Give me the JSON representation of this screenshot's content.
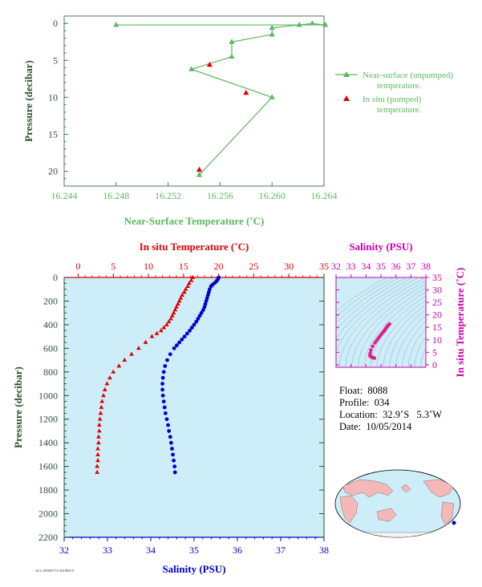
{
  "colors": {
    "green": "#5cb85c",
    "red": "#e00000",
    "blue": "#0000cc",
    "magenta": "#cc00aa",
    "axis_dark": "#2f4f2f",
    "panel_bg": "#cdeef8",
    "map_land": "#f4b8b8",
    "map_ocean": "#cdeef8"
  },
  "chart_data": [
    {
      "type": "line",
      "id": "near-surface",
      "xlabel": "Near-Surface Temperature (˚C)",
      "ylabel": "Pressure (decibar)",
      "xlim": [
        16.244,
        16.264
      ],
      "ylim": [
        22,
        -1
      ],
      "xticks": [
        "16.244",
        "16.248",
        "16.252",
        "16.256",
        "16.260",
        "16.264"
      ],
      "yticks": [
        "0",
        "5",
        "10",
        "15",
        "20"
      ],
      "series": [
        {
          "name": "Near-surface (unpumped) temperature.",
          "marker": "triangle",
          "points": [
            {
              "x": 16.248,
              "y": 0.2
            },
            {
              "x": 16.2641,
              "y": 0.2
            },
            {
              "x": 16.2631,
              "y": 0.0
            },
            {
              "x": 16.2621,
              "y": 0.2
            },
            {
              "x": 16.26,
              "y": 0.6
            },
            {
              "x": 16.26,
              "y": 1.5
            },
            {
              "x": 16.2569,
              "y": 2.5
            },
            {
              "x": 16.2569,
              "y": 4.5
            },
            {
              "x": 16.2538,
              "y": 6.2
            },
            {
              "x": 16.26,
              "y": 10.0
            },
            {
              "x": 16.2544,
              "y": 20.5
            }
          ]
        },
        {
          "name": "In situ (pumped) temperature.",
          "marker": "triangle",
          "points": [
            {
              "x": 16.2552,
              "y": 5.6
            },
            {
              "x": 16.258,
              "y": 9.4
            },
            {
              "x": 16.2544,
              "y": 19.8
            }
          ]
        }
      ],
      "legend": [
        {
          "line1": "Near-surface (unpumped)",
          "line2": "temperature."
        },
        {
          "line1": "In situ (pumped)",
          "line2": "temperature."
        }
      ]
    },
    {
      "type": "scatter",
      "id": "profile",
      "ylabel": "Pressure (decibar)",
      "ylim": [
        2200,
        0
      ],
      "yticks": [
        "0",
        "200",
        "400",
        "600",
        "800",
        "1000",
        "1200",
        "1400",
        "1600",
        "1800",
        "2000",
        "2200"
      ],
      "top_axis": {
        "label": "In situ Temperature (˚C)",
        "xlim": [
          -2,
          35
        ],
        "ticks": [
          "0",
          "5",
          "10",
          "15",
          "20",
          "25",
          "30",
          "35"
        ]
      },
      "bottom_axis": {
        "label": "Salinity (PSU)",
        "xlim": [
          32,
          38
        ],
        "ticks": [
          "32",
          "33",
          "34",
          "35",
          "36",
          "37",
          "38"
        ]
      },
      "temperature": [
        {
          "p": 0,
          "t": 16.3
        },
        {
          "p": 25,
          "t": 16.1
        },
        {
          "p": 50,
          "t": 15.8
        },
        {
          "p": 75,
          "t": 15.6
        },
        {
          "p": 100,
          "t": 15.3
        },
        {
          "p": 125,
          "t": 15.1
        },
        {
          "p": 150,
          "t": 14.8
        },
        {
          "p": 175,
          "t": 14.6
        },
        {
          "p": 200,
          "t": 14.4
        },
        {
          "p": 225,
          "t": 14.2
        },
        {
          "p": 250,
          "t": 14.0
        },
        {
          "p": 275,
          "t": 13.8
        },
        {
          "p": 300,
          "t": 13.6
        },
        {
          "p": 325,
          "t": 13.4
        },
        {
          "p": 350,
          "t": 13.2
        },
        {
          "p": 375,
          "t": 12.9
        },
        {
          "p": 400,
          "t": 12.6
        },
        {
          "p": 425,
          "t": 12.2
        },
        {
          "p": 450,
          "t": 11.8
        },
        {
          "p": 475,
          "t": 11.2
        },
        {
          "p": 500,
          "t": 10.5
        },
        {
          "p": 550,
          "t": 9.6
        },
        {
          "p": 600,
          "t": 8.6
        },
        {
          "p": 650,
          "t": 7.6
        },
        {
          "p": 700,
          "t": 6.6
        },
        {
          "p": 750,
          "t": 5.8
        },
        {
          "p": 800,
          "t": 5.0
        },
        {
          "p": 850,
          "t": 4.5
        },
        {
          "p": 900,
          "t": 4.1
        },
        {
          "p": 950,
          "t": 3.8
        },
        {
          "p": 1000,
          "t": 3.6
        },
        {
          "p": 1050,
          "t": 3.4
        },
        {
          "p": 1100,
          "t": 3.3
        },
        {
          "p": 1150,
          "t": 3.2
        },
        {
          "p": 1200,
          "t": 3.1
        },
        {
          "p": 1250,
          "t": 3.0
        },
        {
          "p": 1300,
          "t": 3.0
        },
        {
          "p": 1350,
          "t": 2.9
        },
        {
          "p": 1400,
          "t": 2.9
        },
        {
          "p": 1450,
          "t": 2.8
        },
        {
          "p": 1500,
          "t": 2.8
        },
        {
          "p": 1550,
          "t": 2.8
        },
        {
          "p": 1600,
          "t": 2.7
        },
        {
          "p": 1650,
          "t": 2.7
        }
      ],
      "salinity": [
        {
          "p": 0,
          "s": 35.57
        },
        {
          "p": 15,
          "s": 35.55
        },
        {
          "p": 30,
          "s": 35.52
        },
        {
          "p": 45,
          "s": 35.48
        },
        {
          "p": 60,
          "s": 35.43
        },
        {
          "p": 75,
          "s": 35.39
        },
        {
          "p": 100,
          "s": 35.36
        },
        {
          "p": 125,
          "s": 35.34
        },
        {
          "p": 150,
          "s": 35.32
        },
        {
          "p": 175,
          "s": 35.3
        },
        {
          "p": 200,
          "s": 35.28
        },
        {
          "p": 225,
          "s": 35.26
        },
        {
          "p": 250,
          "s": 35.24
        },
        {
          "p": 275,
          "s": 35.21
        },
        {
          "p": 300,
          "s": 35.17
        },
        {
          "p": 325,
          "s": 35.13
        },
        {
          "p": 350,
          "s": 35.09
        },
        {
          "p": 375,
          "s": 35.05
        },
        {
          "p": 400,
          "s": 35.0
        },
        {
          "p": 425,
          "s": 34.95
        },
        {
          "p": 450,
          "s": 34.9
        },
        {
          "p": 475,
          "s": 34.84
        },
        {
          "p": 500,
          "s": 34.78
        },
        {
          "p": 525,
          "s": 34.72
        },
        {
          "p": 550,
          "s": 34.66
        },
        {
          "p": 575,
          "s": 34.6
        },
        {
          "p": 600,
          "s": 34.54
        },
        {
          "p": 650,
          "s": 34.45
        },
        {
          "p": 700,
          "s": 34.38
        },
        {
          "p": 750,
          "s": 34.33
        },
        {
          "p": 800,
          "s": 34.3
        },
        {
          "p": 850,
          "s": 34.28
        },
        {
          "p": 900,
          "s": 34.27
        },
        {
          "p": 950,
          "s": 34.27
        },
        {
          "p": 1000,
          "s": 34.28
        },
        {
          "p": 1050,
          "s": 34.3
        },
        {
          "p": 1100,
          "s": 34.32
        },
        {
          "p": 1150,
          "s": 34.34
        },
        {
          "p": 1200,
          "s": 34.37
        },
        {
          "p": 1250,
          "s": 34.4
        },
        {
          "p": 1300,
          "s": 34.42
        },
        {
          "p": 1350,
          "s": 34.45
        },
        {
          "p": 1400,
          "s": 34.47
        },
        {
          "p": 1450,
          "s": 34.49
        },
        {
          "p": 1500,
          "s": 34.51
        },
        {
          "p": 1550,
          "s": 34.53
        },
        {
          "p": 1600,
          "s": 34.55
        },
        {
          "p": 1650,
          "s": 34.56
        }
      ]
    },
    {
      "type": "scatter",
      "id": "ts-diagram",
      "top_label": "Salinity (PSU)",
      "right_label": "In situ Temperature (˚C)",
      "xlim": [
        32,
        38
      ],
      "ylim": [
        -1,
        35
      ],
      "xticks": [
        "32",
        "33",
        "34",
        "35",
        "36",
        "37",
        "38"
      ],
      "yticks": [
        "0",
        "5",
        "10",
        "15",
        "20",
        "25",
        "30",
        "35"
      ],
      "points": [
        {
          "s": 35.57,
          "t": 16.3
        },
        {
          "s": 35.5,
          "t": 15.9
        },
        {
          "s": 35.42,
          "t": 15.4
        },
        {
          "s": 35.36,
          "t": 14.9
        },
        {
          "s": 35.31,
          "t": 14.4
        },
        {
          "s": 35.27,
          "t": 14.0
        },
        {
          "s": 35.22,
          "t": 13.6
        },
        {
          "s": 35.15,
          "t": 13.1
        },
        {
          "s": 35.05,
          "t": 12.4
        },
        {
          "s": 34.95,
          "t": 11.6
        },
        {
          "s": 34.84,
          "t": 10.8
        },
        {
          "s": 34.72,
          "t": 9.8
        },
        {
          "s": 34.6,
          "t": 8.8
        },
        {
          "s": 34.45,
          "t": 7.4
        },
        {
          "s": 34.33,
          "t": 5.9
        },
        {
          "s": 34.28,
          "t": 4.6
        },
        {
          "s": 34.27,
          "t": 3.8
        },
        {
          "s": 34.3,
          "t": 3.3
        },
        {
          "s": 34.37,
          "t": 3.1
        },
        {
          "s": 34.45,
          "t": 2.9
        },
        {
          "s": 34.51,
          "t": 2.8
        },
        {
          "s": 34.56,
          "t": 2.7
        }
      ]
    }
  ],
  "float_info": {
    "float": "Float:  8088",
    "profile": "Profile:  034",
    "location": "Location:  32.9˚S   5.3˚W",
    "date": "Date:  10/05/2014"
  },
  "footer_note": "ALL/28000/T-S 20180419"
}
